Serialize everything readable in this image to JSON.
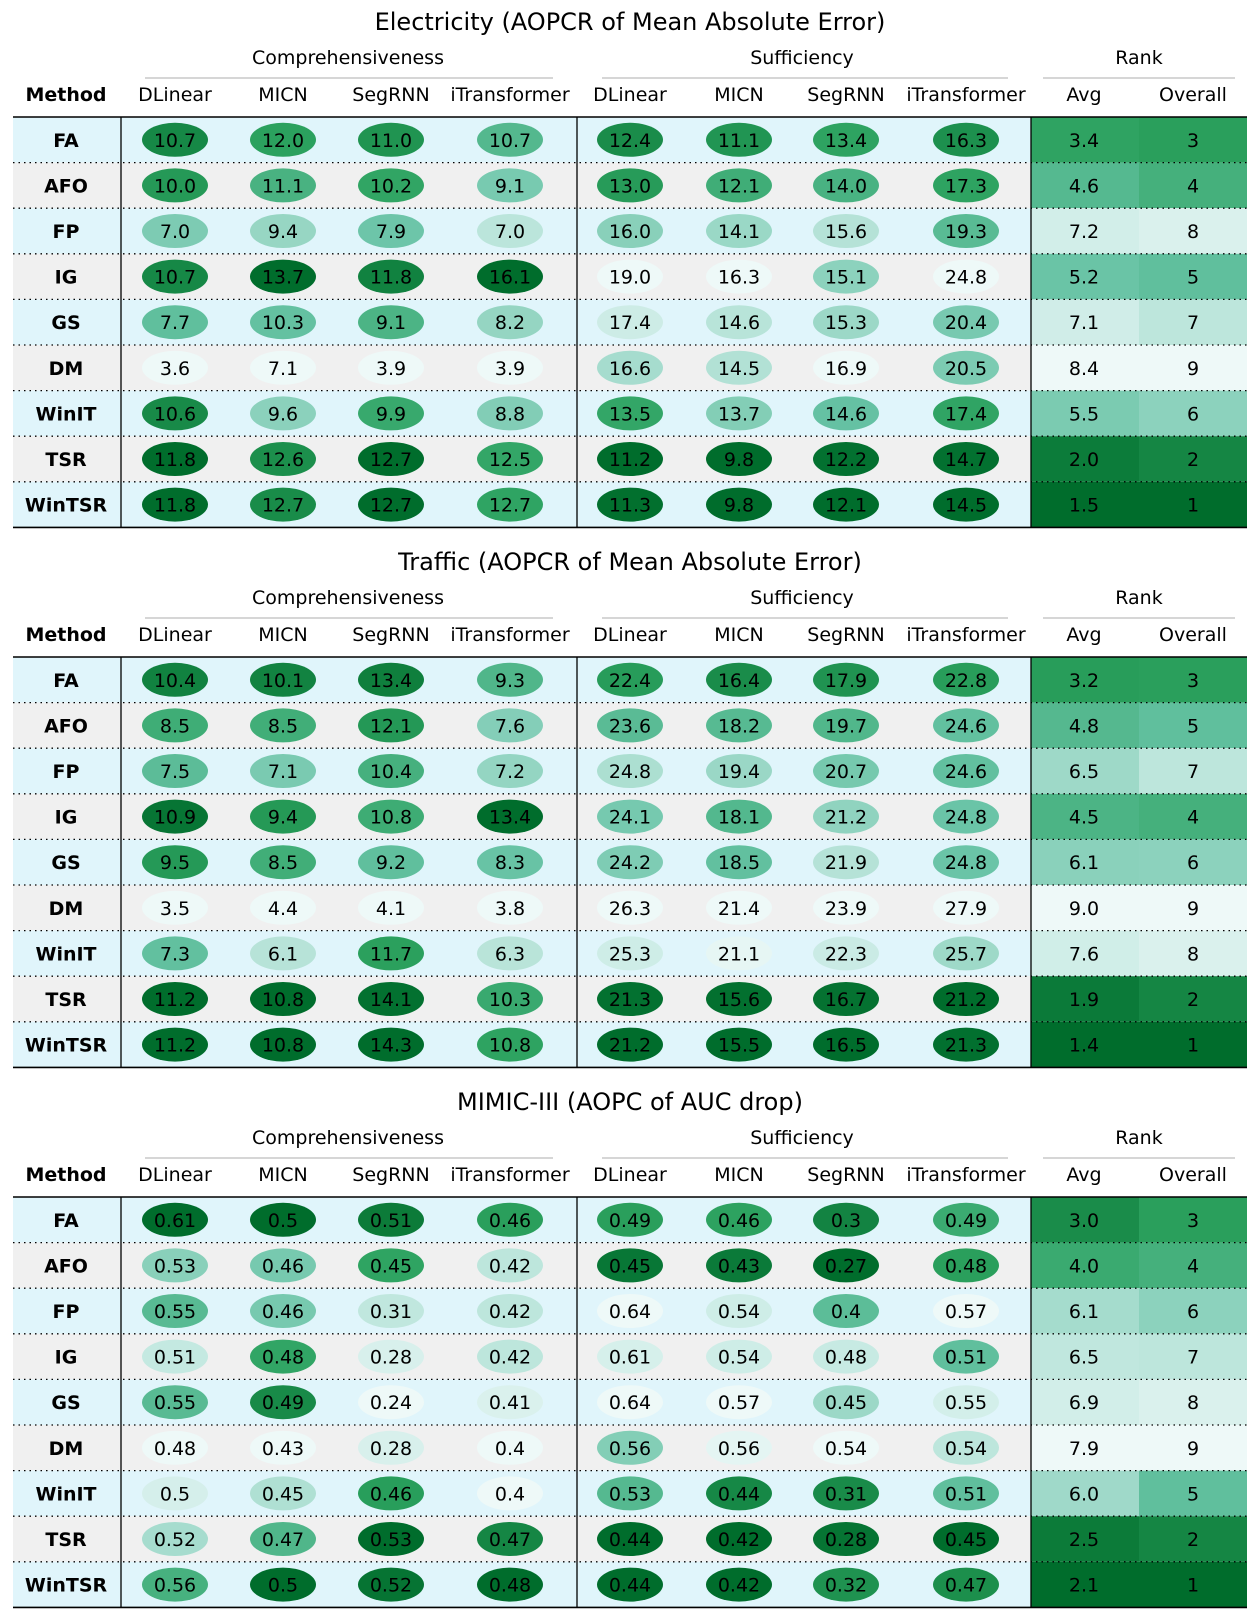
{
  "chart_data": [
    {
      "type": "table",
      "title": "Electricity (AOPCR of Mean Absolute Error)",
      "groups": [
        "Comprehensiveness",
        "Sufficiency",
        "Rank"
      ],
      "method_header": "Method",
      "columns": [
        "DLinear",
        "MICN",
        "SegRNN",
        "iTransformer",
        "DLinear",
        "MICN",
        "SegRNN",
        "iTransformer",
        "Avg",
        "Overall"
      ],
      "rows": [
        {
          "method": "FA",
          "values": [
            "10.7",
            "12.0",
            "11.0",
            "10.7",
            "12.4",
            "11.1",
            "13.4",
            "16.3",
            "3.4",
            "3"
          ]
        },
        {
          "method": "AFO",
          "values": [
            "10.0",
            "11.1",
            "10.2",
            "9.1",
            "13.0",
            "12.1",
            "14.0",
            "17.3",
            "4.6",
            "4"
          ]
        },
        {
          "method": "FP",
          "values": [
            "7.0",
            "9.4",
            "7.9",
            "7.0",
            "16.0",
            "14.1",
            "15.6",
            "19.3",
            "7.2",
            "8"
          ]
        },
        {
          "method": "IG",
          "values": [
            "10.7",
            "13.7",
            "11.8",
            "16.1",
            "19.0",
            "16.3",
            "15.1",
            "24.8",
            "5.2",
            "5"
          ]
        },
        {
          "method": "GS",
          "values": [
            "7.7",
            "10.3",
            "9.1",
            "8.2",
            "17.4",
            "14.6",
            "15.3",
            "20.4",
            "7.1",
            "7"
          ]
        },
        {
          "method": "DM",
          "values": [
            "3.6",
            "7.1",
            "3.9",
            "3.9",
            "16.6",
            "14.5",
            "16.9",
            "20.5",
            "8.4",
            "9"
          ]
        },
        {
          "method": "WinIT",
          "values": [
            "10.6",
            "9.6",
            "9.9",
            "8.8",
            "13.5",
            "13.7",
            "14.6",
            "17.4",
            "5.5",
            "6"
          ]
        },
        {
          "method": "TSR",
          "values": [
            "11.8",
            "12.6",
            "12.7",
            "12.5",
            "11.2",
            "9.8",
            "12.2",
            "14.7",
            "2.0",
            "2"
          ]
        },
        {
          "method": "WinTSR",
          "values": [
            "11.8",
            "12.7",
            "12.7",
            "12.7",
            "11.3",
            "9.8",
            "12.1",
            "14.5",
            "1.5",
            "1"
          ]
        }
      ]
    },
    {
      "type": "table",
      "title": "Traffic (AOPCR of Mean Absolute Error)",
      "groups": [
        "Comprehensiveness",
        "Sufficiency",
        "Rank"
      ],
      "method_header": "Method",
      "columns": [
        "DLinear",
        "MICN",
        "SegRNN",
        "iTransformer",
        "DLinear",
        "MICN",
        "SegRNN",
        "iTransformer",
        "Avg",
        "Overall"
      ],
      "rows": [
        {
          "method": "FA",
          "values": [
            "10.4",
            "10.1",
            "13.4",
            "9.3",
            "22.4",
            "16.4",
            "17.9",
            "22.8",
            "3.2",
            "3"
          ]
        },
        {
          "method": "AFO",
          "values": [
            "8.5",
            "8.5",
            "12.1",
            "7.6",
            "23.6",
            "18.2",
            "19.7",
            "24.6",
            "4.8",
            "5"
          ]
        },
        {
          "method": "FP",
          "values": [
            "7.5",
            "7.1",
            "10.4",
            "7.2",
            "24.8",
            "19.4",
            "20.7",
            "24.6",
            "6.5",
            "7"
          ]
        },
        {
          "method": "IG",
          "values": [
            "10.9",
            "9.4",
            "10.8",
            "13.4",
            "24.1",
            "18.1",
            "21.2",
            "24.8",
            "4.5",
            "4"
          ]
        },
        {
          "method": "GS",
          "values": [
            "9.5",
            "8.5",
            "9.2",
            "8.3",
            "24.2",
            "18.5",
            "21.9",
            "24.8",
            "6.1",
            "6"
          ]
        },
        {
          "method": "DM",
          "values": [
            "3.5",
            "4.4",
            "4.1",
            "3.8",
            "26.3",
            "21.4",
            "23.9",
            "27.9",
            "9.0",
            "9"
          ]
        },
        {
          "method": "WinIT",
          "values": [
            "7.3",
            "6.1",
            "11.7",
            "6.3",
            "25.3",
            "21.1",
            "22.3",
            "25.7",
            "7.6",
            "8"
          ]
        },
        {
          "method": "TSR",
          "values": [
            "11.2",
            "10.8",
            "14.1",
            "10.3",
            "21.3",
            "15.6",
            "16.7",
            "21.2",
            "1.9",
            "2"
          ]
        },
        {
          "method": "WinTSR",
          "values": [
            "11.2",
            "10.8",
            "14.3",
            "10.8",
            "21.2",
            "15.5",
            "16.5",
            "21.3",
            "1.4",
            "1"
          ]
        }
      ]
    },
    {
      "type": "table",
      "title": "MIMIC-III (AOPC of AUC drop)",
      "groups": [
        "Comprehensiveness",
        "Sufficiency",
        "Rank"
      ],
      "method_header": "Method",
      "columns": [
        "DLinear",
        "MICN",
        "SegRNN",
        "iTransformer",
        "DLinear",
        "MICN",
        "SegRNN",
        "iTransformer",
        "Avg",
        "Overall"
      ],
      "rows": [
        {
          "method": "FA",
          "values": [
            "0.61",
            "0.5",
            "0.51",
            "0.46",
            "0.49",
            "0.46",
            "0.3",
            "0.49",
            "3.0",
            "3"
          ]
        },
        {
          "method": "AFO",
          "values": [
            "0.53",
            "0.46",
            "0.45",
            "0.42",
            "0.45",
            "0.43",
            "0.27",
            "0.48",
            "4.0",
            "4"
          ]
        },
        {
          "method": "FP",
          "values": [
            "0.55",
            "0.46",
            "0.31",
            "0.42",
            "0.64",
            "0.54",
            "0.4",
            "0.57",
            "6.1",
            "6"
          ]
        },
        {
          "method": "IG",
          "values": [
            "0.51",
            "0.48",
            "0.28",
            "0.42",
            "0.61",
            "0.54",
            "0.48",
            "0.51",
            "6.5",
            "7"
          ]
        },
        {
          "method": "GS",
          "values": [
            "0.55",
            "0.49",
            "0.24",
            "0.41",
            "0.64",
            "0.57",
            "0.45",
            "0.55",
            "6.9",
            "8"
          ]
        },
        {
          "method": "DM",
          "values": [
            "0.48",
            "0.43",
            "0.28",
            "0.4",
            "0.56",
            "0.56",
            "0.54",
            "0.54",
            "7.9",
            "9"
          ]
        },
        {
          "method": "WinIT",
          "values": [
            "0.5",
            "0.45",
            "0.46",
            "0.4",
            "0.53",
            "0.44",
            "0.31",
            "0.51",
            "6.0",
            "5"
          ]
        },
        {
          "method": "TSR",
          "values": [
            "0.52",
            "0.47",
            "0.53",
            "0.47",
            "0.44",
            "0.42",
            "0.28",
            "0.45",
            "2.5",
            "2"
          ]
        },
        {
          "method": "WinTSR",
          "values": [
            "0.56",
            "0.5",
            "0.52",
            "0.48",
            "0.44",
            "0.42",
            "0.32",
            "0.47",
            "2.1",
            "1"
          ]
        }
      ]
    }
  ],
  "colors": {
    "row_even": "#e0f5fb",
    "row_odd": "#f0f0f0",
    "green_light": "#f7fcfd",
    "green_mid": "#66c2a4",
    "green_dark": "#006d2c",
    "line": "#000000",
    "group_rule": "#c8c8c8"
  }
}
